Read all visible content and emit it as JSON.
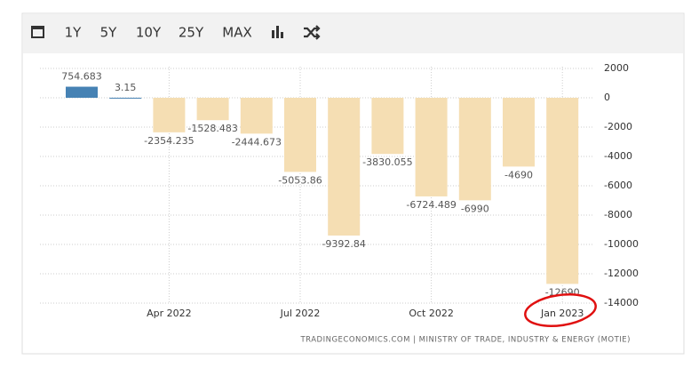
{
  "toolbar": [
    "1Y",
    "5Y",
    "10Y",
    "25Y",
    "MAX"
  ],
  "chart_data": {
    "type": "bar",
    "categories": [
      null,
      null,
      "Apr 2022",
      null,
      null,
      "Jul 2022",
      null,
      null,
      "Oct 2022",
      null,
      null,
      "Jan 2023"
    ],
    "values": [
      754.683,
      3.15,
      -2354.235,
      -1528.483,
      -2444.673,
      -5053.86,
      -9392.84,
      -3830.055,
      -6724.489,
      -6990,
      -4690,
      -12690
    ],
    "colors": [
      "#4682b4",
      "#4682b4",
      "#f5deb3",
      "#f5deb3",
      "#f5deb3",
      "#f5deb3",
      "#f5deb3",
      "#f5deb3",
      "#f5deb3",
      "#f5deb3",
      "#f5deb3",
      "#f5deb3"
    ],
    "ylim": [
      -14000,
      2000
    ],
    "yticks": [
      2000,
      0,
      -2000,
      -4000,
      -6000,
      -8000,
      -10000,
      -12000,
      -14000
    ],
    "grid": true,
    "source": "TRADINGECONOMICS.COM | MINISTRY OF TRADE, INDUSTRY & ENERGY (MOTIE)"
  }
}
